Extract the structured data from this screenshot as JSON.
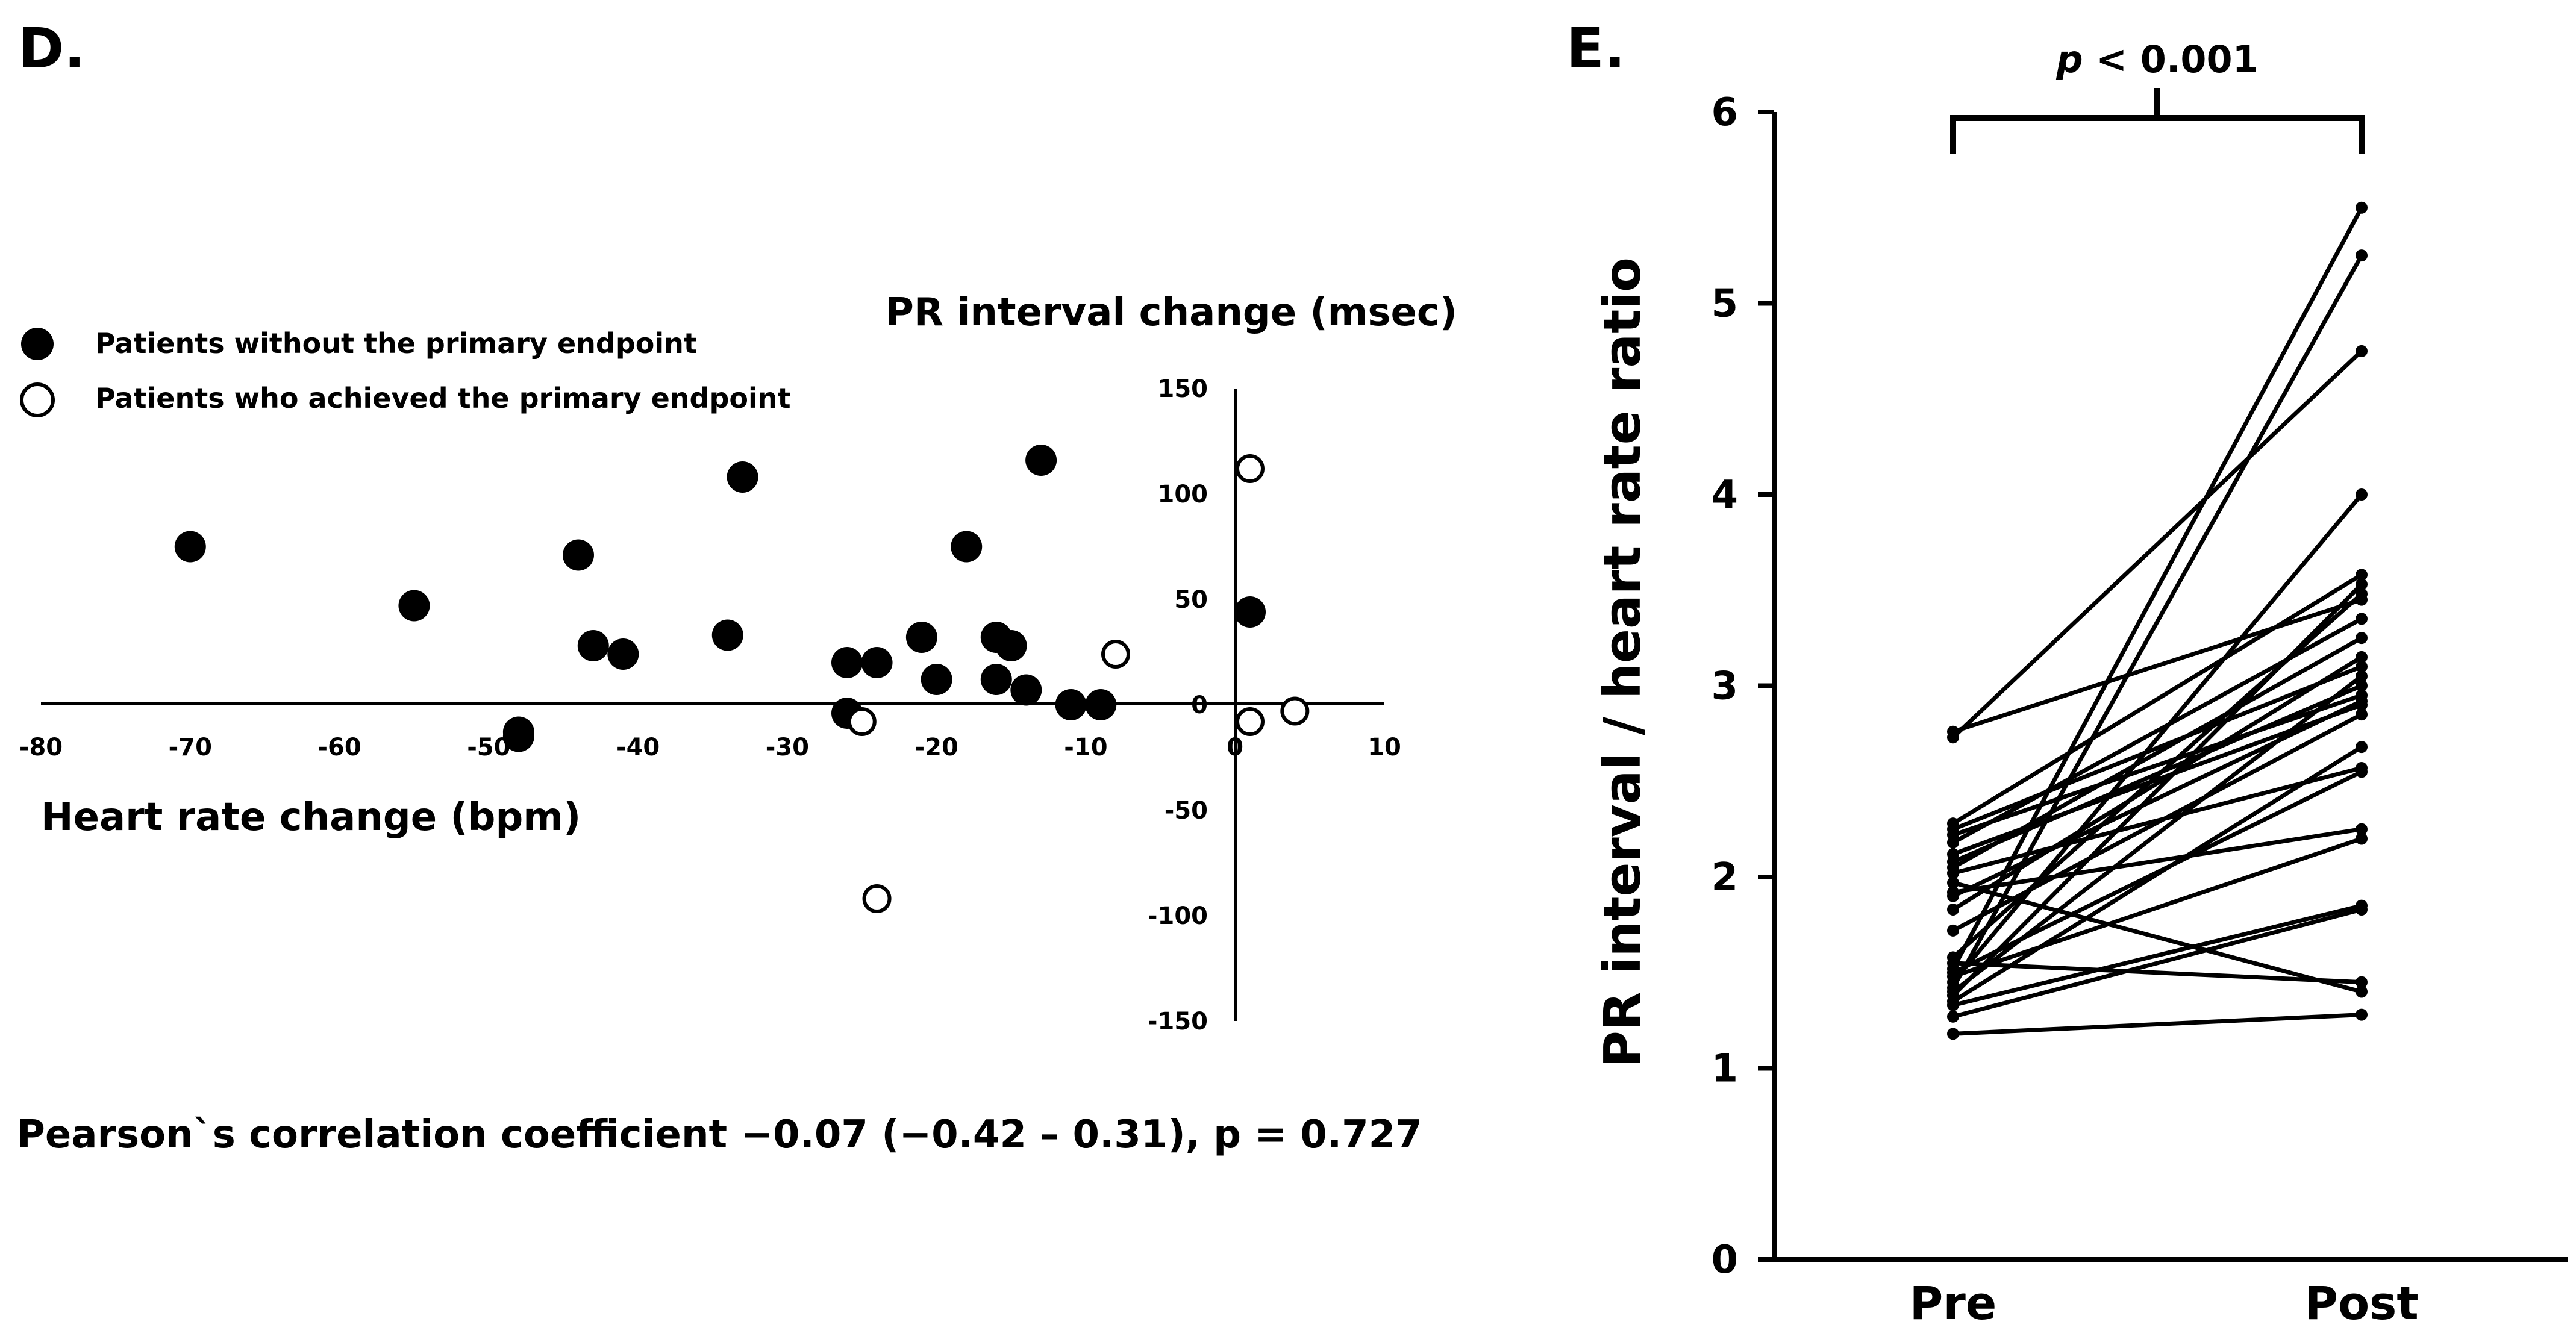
{
  "chart_data": [
    {
      "panel_label": "D.",
      "type": "scatter",
      "legend": [
        {
          "label": "Patients without the primary endpoint",
          "marker": "filled-circle"
        },
        {
          "label": "Patients who achieved the primary endpoint",
          "marker": "open-circle"
        }
      ],
      "ylabel": "PR interval change (msec)",
      "xlabel": "Heart rate change (bpm)",
      "xlim": [
        -80,
        10
      ],
      "ylim": [
        -150,
        150
      ],
      "xticks": [
        "-80",
        "-70",
        "-60",
        "-50",
        "-40",
        "-30",
        "-20",
        "-10",
        "0",
        "10"
      ],
      "yticks": [
        "150",
        "100",
        "50",
        "0",
        "-50",
        "-100",
        "-150"
      ],
      "series": [
        {
          "name": "Patients without the primary endpoint",
          "points": [
            {
              "x": -70,
              "y": 75
            },
            {
              "x": -55,
              "y": 47
            },
            {
              "x": -48,
              "y": -13
            },
            {
              "x": -48,
              "y": -15
            },
            {
              "x": -44,
              "y": 71
            },
            {
              "x": -43,
              "y": 28
            },
            {
              "x": -41,
              "y": 24
            },
            {
              "x": -34,
              "y": 33
            },
            {
              "x": -33,
              "y": 108
            },
            {
              "x": -26,
              "y": 20
            },
            {
              "x": -26,
              "y": -4
            },
            {
              "x": -24,
              "y": 20
            },
            {
              "x": -21,
              "y": 32
            },
            {
              "x": -20,
              "y": 12
            },
            {
              "x": -18,
              "y": 75
            },
            {
              "x": -16,
              "y": 32
            },
            {
              "x": -16,
              "y": 12
            },
            {
              "x": -15,
              "y": 28
            },
            {
              "x": -14,
              "y": 7
            },
            {
              "x": -13,
              "y": 116
            },
            {
              "x": -11,
              "y": 0
            },
            {
              "x": -9,
              "y": 0
            },
            {
              "x": 1,
              "y": 44
            }
          ]
        },
        {
          "name": "Patients who achieved the primary endpoint",
          "points": [
            {
              "x": 1,
              "y": 112
            },
            {
              "x": -8,
              "y": 24
            },
            {
              "x": -25,
              "y": -8
            },
            {
              "x": 1,
              "y": -8
            },
            {
              "x": 4,
              "y": -3
            },
            {
              "x": -24,
              "y": -92
            }
          ]
        }
      ],
      "annotation": "Pearson`s correlation coefficient −0.07 (−0.42 – 0.31), p = 0.727"
    },
    {
      "panel_label": "E.",
      "type": "line",
      "ylabel": "PR interval / heart rate ratio",
      "categories": [
        "Pre",
        "Post"
      ],
      "ylim": [
        0,
        6
      ],
      "yticks": [
        "0",
        "1",
        "2",
        "3",
        "4",
        "5",
        "6"
      ],
      "significance": {
        "p_italic": "p",
        "text": " < 0.001"
      },
      "pairs": [
        [
          2.76,
          3.45
        ],
        [
          2.73,
          4.75
        ],
        [
          2.28,
          3.58
        ],
        [
          2.25,
          3.1
        ],
        [
          2.22,
          2.95
        ],
        [
          2.18,
          3.35
        ],
        [
          2.12,
          2.9
        ],
        [
          2.08,
          3.0
        ],
        [
          2.02,
          2.57
        ],
        [
          1.97,
          1.4
        ],
        [
          1.92,
          2.25
        ],
        [
          1.83,
          3.15
        ],
        [
          1.72,
          2.85
        ],
        [
          1.58,
          3.48
        ],
        [
          1.55,
          1.45
        ],
        [
          1.52,
          5.5
        ],
        [
          1.48,
          2.2
        ],
        [
          1.45,
          4.0
        ],
        [
          1.42,
          5.25
        ],
        [
          1.4,
          3.05
        ],
        [
          1.38,
          3.53
        ],
        [
          1.35,
          2.68
        ],
        [
          1.33,
          1.85
        ],
        [
          1.27,
          1.83
        ],
        [
          1.18,
          1.28
        ],
        [
          1.5,
          2.55
        ],
        [
          2.05,
          3.25
        ],
        [
          1.9,
          2.92
        ]
      ]
    }
  ]
}
